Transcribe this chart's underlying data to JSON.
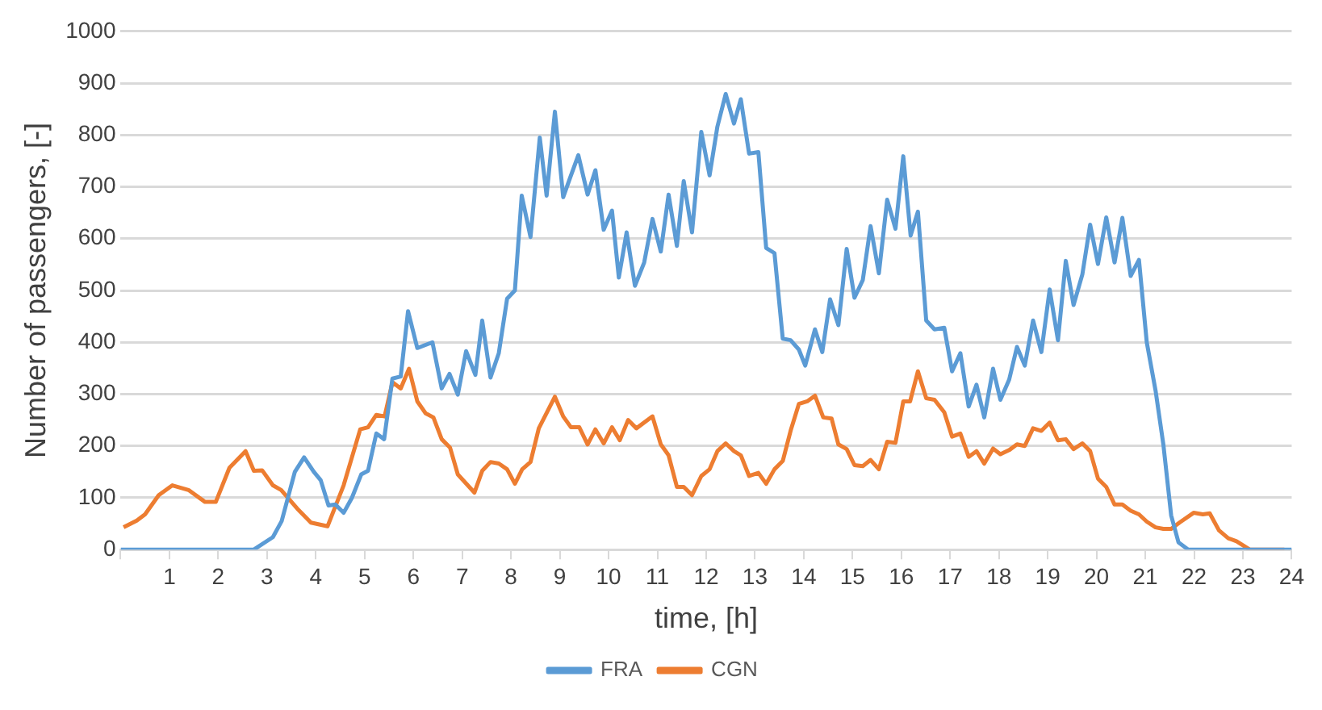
{
  "chart_data": {
    "type": "line",
    "xlabel": "time, [h]",
    "ylabel": "Number of passengers, [-]",
    "xlim": [
      0,
      24
    ],
    "xticks": [
      {
        "value": 0,
        "label": null
      },
      1,
      2,
      3,
      4,
      5,
      6,
      7,
      8,
      9,
      10,
      11,
      12,
      13,
      14,
      15,
      16,
      17,
      18,
      19,
      20,
      21,
      22,
      23,
      24
    ],
    "ylim": [
      0,
      1000
    ],
    "yticks": [
      0,
      100,
      200,
      300,
      400,
      500,
      600,
      700,
      800,
      900,
      1000
    ],
    "grid": "y",
    "legend": "bottom",
    "marker": "none",
    "line_style": "solid",
    "series": [
      {
        "name": "FRA",
        "color": "#5b9bd5",
        "x": [
          0,
          1,
          2,
          2.73,
          3.12,
          3.3,
          3.57,
          3.76,
          3.96,
          4.1,
          4.26,
          4.4,
          4.57,
          4.74,
          4.93,
          5.07,
          5.24,
          5.4,
          5.57,
          5.74,
          5.89,
          6.08,
          6.39,
          6.58,
          6.74,
          6.91,
          7.08,
          7.27,
          7.41,
          7.58,
          7.75,
          7.92,
          8.08,
          8.22,
          8.4,
          8.59,
          8.73,
          8.9,
          9.07,
          9.21,
          9.38,
          9.57,
          9.73,
          9.9,
          10.07,
          10.21,
          10.37,
          10.54,
          10.73,
          10.9,
          11.07,
          11.23,
          11.4,
          11.54,
          11.71,
          11.9,
          12.07,
          12.23,
          12.4,
          12.57,
          12.71,
          12.88,
          13.07,
          13.23,
          13.4,
          13.57,
          13.73,
          13.9,
          14.03,
          14.23,
          14.38,
          14.54,
          14.71,
          14.88,
          15.04,
          15.21,
          15.37,
          15.54,
          15.71,
          15.88,
          16.04,
          16.19,
          16.34,
          16.51,
          16.68,
          16.88,
          17.04,
          17.21,
          17.38,
          17.54,
          17.7,
          17.88,
          18.03,
          18.21,
          18.37,
          18.53,
          18.7,
          18.87,
          19.04,
          19.21,
          19.37,
          19.53,
          19.71,
          19.87,
          20.03,
          20.2,
          20.37,
          20.53,
          20.7,
          20.87,
          21.03,
          21.21,
          21.37,
          21.53,
          21.68,
          21.88,
          23,
          24
        ],
        "values": [
          0,
          0,
          0,
          0,
          24,
          55,
          150,
          178,
          150,
          134,
          85,
          87,
          71,
          100,
          145,
          152,
          224,
          213,
          330,
          334,
          460,
          389,
          400,
          311,
          339,
          299,
          383,
          337,
          442,
          332,
          379,
          484,
          500,
          683,
          603,
          795,
          683,
          845,
          680,
          717,
          761,
          685,
          732,
          617,
          654,
          525,
          612,
          509,
          554,
          638,
          575,
          685,
          586,
          711,
          612,
          806,
          722,
          816,
          879,
          822,
          869,
          764,
          767,
          582,
          572,
          407,
          404,
          386,
          355,
          425,
          381,
          483,
          433,
          580,
          486,
          520,
          624,
          533,
          675,
          619,
          759,
          606,
          652,
          442,
          425,
          428,
          344,
          379,
          276,
          318,
          255,
          349,
          289,
          328,
          391,
          355,
          442,
          381,
          502,
          404,
          557,
          472,
          531,
          627,
          551,
          641,
          554,
          640,
          528,
          559,
          400,
          307,
          203,
          66,
          14,
          0,
          0,
          0
        ]
      },
      {
        "name": "CGN",
        "color": "#ed7d31",
        "x": [
          0.06,
          0.33,
          0.5,
          0.78,
          1.06,
          1.39,
          1.73,
          1.95,
          2.23,
          2.56,
          2.73,
          2.9,
          3.12,
          3.29,
          3.62,
          3.9,
          4.24,
          4.57,
          4.91,
          5.07,
          5.24,
          5.41,
          5.57,
          5.74,
          5.91,
          6.08,
          6.25,
          6.41,
          6.58,
          6.75,
          6.91,
          7.25,
          7.41,
          7.58,
          7.75,
          7.92,
          8.08,
          8.23,
          8.4,
          8.57,
          8.9,
          9.07,
          9.23,
          9.4,
          9.57,
          9.73,
          9.9,
          10.07,
          10.23,
          10.4,
          10.57,
          10.9,
          11.07,
          11.23,
          11.4,
          11.54,
          11.71,
          11.9,
          12.07,
          12.23,
          12.4,
          12.57,
          12.71,
          12.88,
          13.07,
          13.23,
          13.4,
          13.57,
          13.73,
          13.9,
          14.07,
          14.23,
          14.4,
          14.57,
          14.71,
          14.88,
          15.04,
          15.21,
          15.37,
          15.54,
          15.71,
          15.88,
          16.04,
          16.18,
          16.34,
          16.51,
          16.68,
          16.88,
          17.04,
          17.21,
          17.38,
          17.54,
          17.7,
          17.88,
          18.03,
          18.21,
          18.37,
          18.53,
          18.7,
          18.87,
          19.04,
          19.21,
          19.37,
          19.53,
          19.71,
          19.87,
          20.03,
          20.2,
          20.37,
          20.53,
          20.7,
          20.87,
          21.03,
          21.21,
          21.37,
          21.53,
          21.7,
          21.99,
          22.18,
          22.32,
          22.51,
          22.7,
          22.87,
          23.14,
          23.85
        ],
        "values": [
          43,
          56,
          68,
          105,
          124,
          115,
          92,
          92,
          158,
          190,
          152,
          153,
          124,
          115,
          79,
          52,
          45,
          124,
          232,
          236,
          260,
          257,
          323,
          311,
          349,
          286,
          263,
          255,
          213,
          197,
          145,
          110,
          152,
          169,
          166,
          155,
          127,
          155,
          169,
          234,
          295,
          257,
          236,
          236,
          203,
          232,
          205,
          236,
          211,
          250,
          234,
          257,
          203,
          182,
          121,
          121,
          105,
          142,
          155,
          190,
          205,
          190,
          182,
          142,
          148,
          127,
          155,
          171,
          229,
          281,
          286,
          297,
          255,
          253,
          203,
          194,
          163,
          161,
          173,
          155,
          208,
          206,
          286,
          286,
          344,
          292,
          289,
          265,
          218,
          224,
          179,
          190,
          166,
          195,
          184,
          192,
          203,
          200,
          234,
          229,
          245,
          211,
          213,
          194,
          205,
          190,
          137,
          121,
          87,
          87,
          75,
          68,
          54,
          43,
          40,
          40,
          52,
          71,
          68,
          70,
          37,
          22,
          16,
          0,
          0
        ]
      }
    ]
  }
}
